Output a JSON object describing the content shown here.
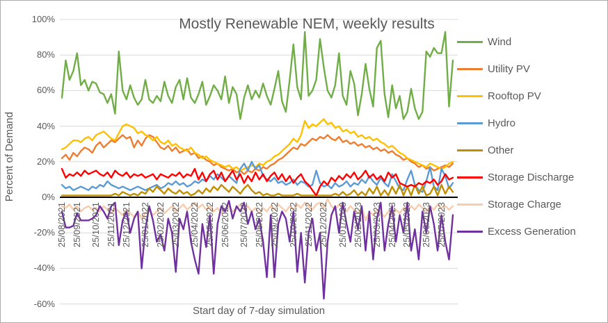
{
  "chart_data": {
    "type": "line",
    "title": "Mostly Renewable NEM, weekly results",
    "xlabel": "Start day of 7-day simulation",
    "ylabel": "Percent of Demand",
    "cadence": "weekly",
    "grid": true,
    "legend_position": "right",
    "colors": {
      "gridline": "#D9D9D9",
      "zero_line": "#000000",
      "axis_text": "#595959",
      "title_text": "#595959",
      "border": "#ABABAB"
    },
    "y_axis": {
      "min": -60,
      "max": 100,
      "tick_values": [
        100,
        80,
        60,
        40,
        20,
        0,
        -20,
        -40,
        -60
      ],
      "tick_labels": [
        "100%",
        "80%",
        "60%",
        "40%",
        "20%",
        "0%",
        "-20%",
        "-40%",
        "-60%"
      ]
    },
    "x_axis": {
      "n_points": 104,
      "tick_indices": [
        0,
        4,
        9,
        13,
        17,
        22,
        26,
        30,
        35,
        39,
        43,
        48,
        52,
        56,
        61,
        65,
        69,
        74,
        78,
        83,
        87,
        91,
        96,
        100
      ],
      "tick_labels": [
        "25/08/2021",
        "25/09/2021",
        "25/10/2021",
        "25/11/2021",
        "25/12/2021",
        "25/01/2022",
        "25/02/2022",
        "25/03/2022",
        "25/04/2022",
        "25/05/2022",
        "25/06/2022",
        "25/07/2022",
        "25/08/2022",
        "25/09/2022",
        "25/10/2022",
        "25/11/2022",
        "25/12/2022",
        "25/01/2023",
        "25/02/2023",
        "25/03/2023",
        "25/04/2023",
        "25/05/2023",
        "25/06/2023",
        "25/07/2023"
      ]
    },
    "series": [
      {
        "name": "Wind",
        "color": "#70AD47",
        "values": [
          56,
          77,
          66,
          71,
          81,
          63,
          66,
          60,
          65,
          64,
          59,
          58,
          53,
          58,
          47,
          82,
          60,
          55,
          63,
          56,
          52,
          55,
          66,
          55,
          53,
          57,
          54,
          65,
          57,
          53,
          62,
          66,
          55,
          67,
          56,
          53,
          58,
          65,
          52,
          57,
          63,
          60,
          55,
          68,
          53,
          62,
          58,
          44,
          56,
          63,
          55,
          60,
          56,
          64,
          57,
          52,
          61,
          71,
          54,
          48,
          66,
          86,
          62,
          55,
          93,
          57,
          60,
          66,
          89,
          73,
          60,
          56,
          63,
          81,
          57,
          52,
          71,
          64,
          46,
          58,
          75,
          61,
          51,
          84,
          88,
          58,
          45,
          63,
          50,
          57,
          44,
          48,
          61,
          50,
          44,
          48,
          82,
          79,
          84,
          81,
          81,
          93,
          51,
          77
        ]
      },
      {
        "name": "Utility PV",
        "color": "#ED7D31",
        "values": [
          22,
          24,
          21,
          25,
          23,
          26,
          28,
          27,
          25,
          29,
          31,
          28,
          30,
          32,
          31,
          33,
          35,
          33,
          34,
          28,
          32,
          29,
          33,
          35,
          34,
          31,
          28,
          27,
          29,
          26,
          28,
          25,
          26,
          27,
          24,
          25,
          22,
          23,
          21,
          20,
          18,
          19,
          17,
          16,
          15,
          16,
          14,
          15,
          13,
          15,
          14,
          16,
          15,
          17,
          16,
          18,
          19,
          21,
          22,
          24,
          26,
          28,
          27,
          30,
          29,
          31,
          33,
          32,
          34,
          33,
          35,
          33,
          32,
          34,
          31,
          32,
          30,
          31,
          29,
          30,
          28,
          29,
          27,
          28,
          26,
          27,
          25,
          26,
          24,
          23,
          21,
          22,
          20,
          19,
          17,
          18,
          16,
          17,
          15,
          16,
          17,
          18,
          17,
          19
        ]
      },
      {
        "name": "Rooftop PV",
        "color": "#FFC000",
        "values": [
          27,
          28,
          30,
          32,
          32,
          31,
          33,
          34,
          32,
          35,
          36,
          37,
          35,
          33,
          32,
          36,
          40,
          41,
          40,
          39,
          36,
          37,
          35,
          34,
          32,
          34,
          31,
          30,
          32,
          29,
          30,
          28,
          27,
          26,
          28,
          25,
          24,
          22,
          23,
          21,
          20,
          19,
          18,
          17,
          18,
          16,
          17,
          15,
          16,
          17,
          18,
          17,
          19,
          18,
          20,
          21,
          23,
          24,
          26,
          28,
          30,
          33,
          31,
          35,
          43,
          39,
          41,
          40,
          42,
          44,
          41,
          42,
          39,
          40,
          37,
          38,
          36,
          37,
          34,
          35,
          33,
          34,
          32,
          33,
          31,
          30,
          28,
          29,
          27,
          25,
          24,
          22,
          21,
          20,
          19,
          18,
          17,
          19,
          18,
          17,
          16,
          17,
          19,
          20
        ]
      },
      {
        "name": "Hydro",
        "color": "#5B9BD5",
        "values": [
          7,
          5,
          6,
          4,
          5,
          6,
          5,
          4,
          6,
          5,
          7,
          6,
          9,
          7,
          6,
          5,
          6,
          5,
          4,
          5,
          6,
          5,
          4,
          5,
          6,
          7,
          5,
          6,
          8,
          7,
          9,
          7,
          8,
          6,
          7,
          9,
          8,
          10,
          9,
          12,
          10,
          13,
          11,
          9,
          12,
          10,
          8,
          16,
          19,
          15,
          20,
          16,
          18,
          12,
          10,
          9,
          11,
          8,
          9,
          7,
          8,
          10,
          7,
          9,
          8,
          6,
          7,
          15,
          8,
          6,
          7,
          5,
          8,
          6,
          7,
          9,
          6,
          8,
          7,
          10,
          8,
          12,
          9,
          7,
          11,
          8,
          6,
          13,
          9,
          5,
          4,
          10,
          15,
          7,
          4,
          3,
          9,
          17,
          6,
          4,
          16,
          12,
          5,
          8
        ]
      },
      {
        "name": "Other",
        "color": "#BF8F00",
        "values": [
          1,
          1,
          1,
          1,
          1,
          1,
          1,
          1,
          1,
          1,
          1,
          1,
          1,
          1,
          2,
          1,
          3,
          2,
          1,
          2,
          1,
          3,
          2,
          5,
          3,
          6,
          4,
          2,
          5,
          3,
          2,
          4,
          2,
          3,
          1,
          2,
          4,
          2,
          5,
          3,
          6,
          4,
          7,
          5,
          3,
          6,
          4,
          2,
          5,
          7,
          4,
          2,
          3,
          1,
          2,
          1,
          1,
          2,
          1,
          1,
          1,
          1,
          2,
          1,
          1,
          1,
          1,
          1,
          1,
          1,
          1,
          1,
          2,
          1,
          3,
          1,
          2,
          4,
          1,
          3,
          1,
          5,
          2,
          6,
          1,
          4,
          1,
          6,
          2,
          7,
          1,
          6,
          1,
          7,
          2,
          6,
          1,
          2,
          6,
          1,
          7,
          2,
          6,
          3
        ]
      },
      {
        "name": "Storage Discharge",
        "color": "#FF0000",
        "values": [
          16,
          11,
          13,
          12,
          14,
          12,
          15,
          13,
          14,
          15,
          13,
          12,
          14,
          11,
          15,
          13,
          12,
          14,
          11,
          13,
          12,
          13,
          11,
          12,
          13,
          10,
          13,
          12,
          11,
          13,
          12,
          14,
          11,
          13,
          12,
          16,
          10,
          14,
          9,
          13,
          15,
          10,
          14,
          9,
          12,
          15,
          10,
          13,
          8,
          12,
          9,
          14,
          10,
          13,
          9,
          12,
          14,
          10,
          13,
          9,
          12,
          8,
          11,
          13,
          9,
          7,
          4,
          1,
          6,
          9,
          7,
          11,
          9,
          12,
          10,
          13,
          11,
          14,
          10,
          12,
          15,
          11,
          13,
          10,
          12,
          9,
          14,
          11,
          13,
          8,
          7,
          6,
          7,
          6,
          8,
          7,
          9,
          8,
          10,
          7,
          9,
          13,
          10,
          11
        ]
      },
      {
        "name": "Storage Charge",
        "color": "#F8CBAD",
        "values": [
          -5,
          -6,
          -4,
          -7,
          -5,
          -8,
          -6,
          -5,
          -7,
          -6,
          -8,
          -5,
          -7,
          -9,
          -6,
          -8,
          -10,
          -7,
          -9,
          -11,
          -8,
          -12,
          -9,
          -7,
          -10,
          -8,
          -6,
          -9,
          -7,
          -5,
          -8,
          -6,
          -4,
          -7,
          -5,
          -3,
          -6,
          -4,
          -7,
          -5,
          -8,
          -6,
          -9,
          -7,
          -5,
          -8,
          -6,
          -4,
          -7,
          -5,
          -8,
          -6,
          -9,
          -6,
          -8,
          -5,
          -7,
          -4,
          -6,
          -8,
          -5,
          -7,
          -4,
          -6,
          -3,
          -5,
          -7,
          -4,
          -3,
          -6,
          -1,
          -5,
          -7,
          -4,
          -6,
          -8,
          -5,
          -7,
          -9,
          -6,
          -13,
          -8,
          -10,
          -7,
          -9,
          -11,
          -8,
          -10,
          -7,
          -9,
          -6,
          -8,
          -5,
          -7,
          -4,
          -6,
          -8,
          -5,
          -7,
          -4,
          -6,
          -5,
          -7,
          -5
        ]
      },
      {
        "name": "Excess Generation",
        "color": "#7030A0",
        "values": [
          -8,
          -17,
          -17,
          -16,
          -9,
          -13,
          -13,
          -13,
          -12,
          -10,
          -5,
          -8,
          -12,
          -5,
          -3,
          -27,
          -13,
          -8,
          -20,
          -12,
          -8,
          -40,
          -18,
          -5,
          -13,
          -25,
          -21,
          -30,
          -12,
          -20,
          -42,
          -12,
          -18,
          -8,
          -25,
          -35,
          -43,
          -15,
          -28,
          -10,
          -43,
          -15,
          -5,
          -8,
          -2,
          -12,
          -5,
          -8,
          -3,
          -15,
          -8,
          -18,
          -12,
          -25,
          -45,
          -10,
          -45,
          -15,
          -8,
          -12,
          -25,
          -8,
          -42,
          -20,
          -48,
          -20,
          -12,
          -30,
          -20,
          -57,
          -25,
          -10,
          -5,
          -20,
          -3,
          -15,
          -25,
          -8,
          -18,
          -5,
          -30,
          -8,
          -35,
          -12,
          -3,
          -30,
          -15,
          -5,
          -25,
          -10,
          -20,
          -3,
          -30,
          -18,
          -35,
          -8,
          -20,
          -5,
          -15,
          -30,
          -10,
          -25,
          -35,
          -10
        ]
      }
    ]
  }
}
